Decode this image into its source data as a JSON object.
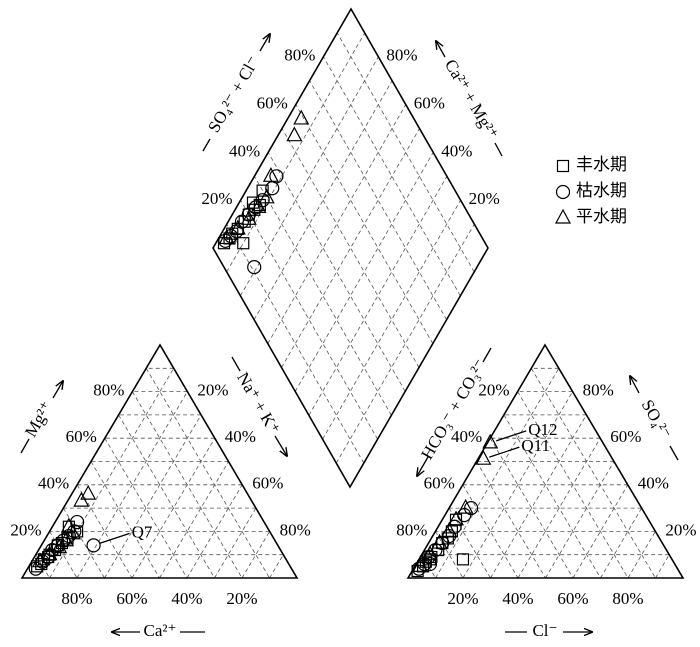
{
  "chart_data": {
    "type": "piper",
    "grid_lines": [
      10,
      20,
      30,
      40,
      50,
      60,
      70,
      80,
      90
    ],
    "cation": {
      "ca": {
        "title": "Ca²⁺",
        "ticks": [
          {
            "value": 20,
            "label": "20%"
          },
          {
            "value": 40,
            "label": "40%"
          },
          {
            "value": 60,
            "label": "60%"
          },
          {
            "value": 80,
            "label": "80%"
          }
        ]
      },
      "mg": {
        "title": "Mg²⁺",
        "ticks": [
          {
            "value": 20,
            "label": "20%"
          },
          {
            "value": 40,
            "label": "40%"
          },
          {
            "value": 60,
            "label": "60%"
          },
          {
            "value": 80,
            "label": "80%"
          }
        ]
      },
      "na": {
        "title": "Na⁺ + K⁺",
        "ticks": [
          {
            "value": 20,
            "label": "20%"
          },
          {
            "value": 40,
            "label": "40%"
          },
          {
            "value": 60,
            "label": "60%"
          },
          {
            "value": 80,
            "label": "80%"
          }
        ]
      }
    },
    "anion": {
      "hco3": {
        "title": "HCO₃⁻ + CO₃²⁻",
        "ticks": [
          {
            "value": 20,
            "label": "20%"
          },
          {
            "value": 40,
            "label": "40%"
          },
          {
            "value": 60,
            "label": "60%"
          },
          {
            "value": 80,
            "label": "80%"
          }
        ]
      },
      "so4": {
        "title": "SO₄²⁻",
        "ticks": [
          {
            "value": 20,
            "label": "20%"
          },
          {
            "value": 40,
            "label": "40%"
          },
          {
            "value": 60,
            "label": "60%"
          },
          {
            "value": 80,
            "label": "80%"
          }
        ]
      },
      "cl": {
        "title": "Cl⁻",
        "ticks": [
          {
            "value": 20,
            "label": "20%"
          },
          {
            "value": 40,
            "label": "40%"
          },
          {
            "value": 60,
            "label": "60%"
          },
          {
            "value": 80,
            "label": "80%"
          }
        ]
      }
    },
    "diamond": {
      "so4_cl": {
        "title": "SO₄²⁻ + Cl⁻",
        "ticks": [
          {
            "value": 20,
            "label": "20%"
          },
          {
            "value": 40,
            "label": "40%"
          },
          {
            "value": 60,
            "label": "60%"
          },
          {
            "value": 80,
            "label": "80%"
          }
        ]
      },
      "ca_mg": {
        "title": "Ca²⁺ + Mg²⁺",
        "ticks": [
          {
            "value": 20,
            "label": "20%"
          },
          {
            "value": 40,
            "label": "40%"
          },
          {
            "value": 60,
            "label": "60%"
          },
          {
            "value": 80,
            "label": "80%"
          }
        ]
      }
    },
    "series": [
      {
        "name": "丰水期",
        "marker": "square",
        "color": "#000000",
        "ca": [
          92,
          90,
          88,
          85,
          82,
          80,
          78,
          75,
          86,
          70,
          72
        ],
        "mg": [
          5,
          6,
          8,
          10,
          12,
          14,
          15,
          17,
          9,
          20,
          22
        ],
        "so4": [
          3,
          5,
          7,
          9,
          12,
          15,
          17,
          20,
          8,
          8,
          25
        ],
        "cl": [
          2,
          3,
          3,
          4,
          5,
          5,
          6,
          6,
          16,
          4,
          5
        ],
        "labels": [
          null,
          null,
          null,
          null,
          null,
          null,
          null,
          null,
          null,
          null,
          null
        ]
      },
      {
        "name": "枯水期",
        "marker": "circle",
        "color": "#000000",
        "label_panel": "cation",
        "ca": [
          93,
          89,
          86,
          83,
          80,
          77,
          74,
          71,
          68,
          67
        ],
        "mg": [
          4,
          7,
          9,
          12,
          14,
          16,
          18,
          20,
          24,
          14
        ],
        "so4": [
          4,
          6,
          9,
          12,
          15,
          18,
          22,
          27,
          30,
          6
        ],
        "cl": [
          2,
          3,
          3,
          4,
          5,
          6,
          6,
          7,
          8,
          5
        ],
        "labels": [
          null,
          null,
          null,
          null,
          null,
          null,
          null,
          null,
          null,
          "Q7"
        ]
      },
      {
        "name": "平水期",
        "marker": "triangle",
        "color": "#000000",
        "label_panel": "anion",
        "ca": [
          90,
          85,
          80,
          76,
          72,
          72,
          58,
          62
        ],
        "mg": [
          7,
          10,
          13,
          16,
          19,
          22,
          36,
          33
        ],
        "so4": [
          5,
          10,
          15,
          20,
          25,
          30,
          51,
          58
        ],
        "cl": [
          2,
          3,
          4,
          5,
          5,
          6,
          2,
          1
        ],
        "labels": [
          null,
          null,
          null,
          null,
          null,
          null,
          "Q11",
          "Q12"
        ]
      }
    ]
  }
}
